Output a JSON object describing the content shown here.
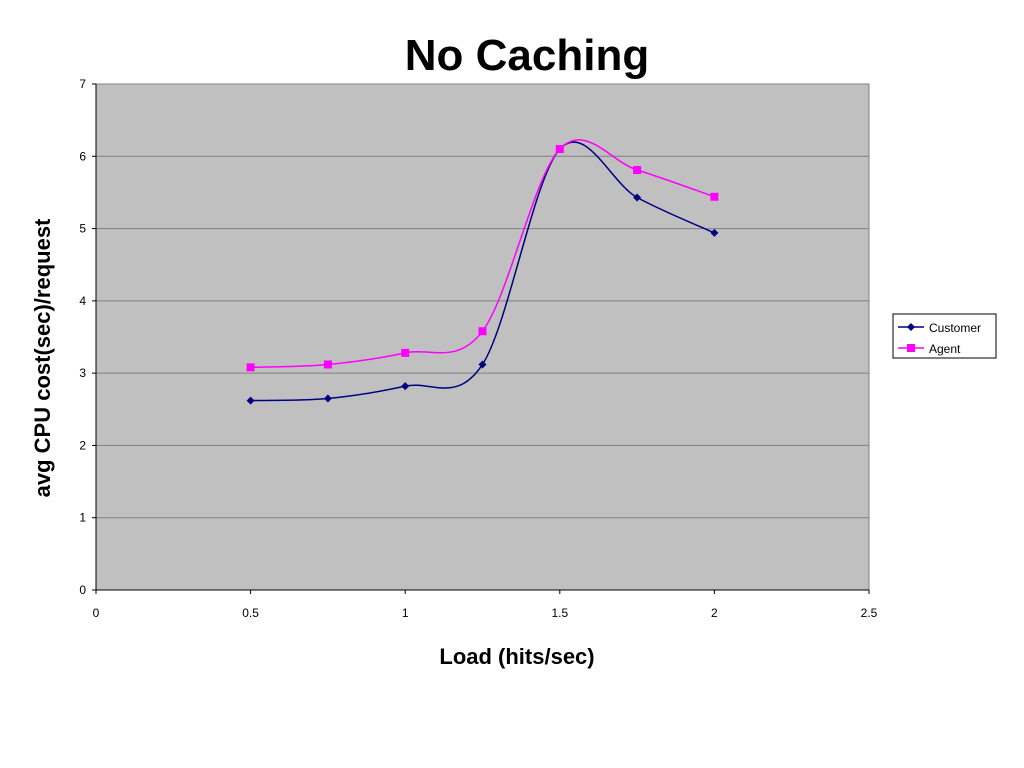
{
  "chart_data": {
    "type": "line",
    "title": "No Caching",
    "xlabel": "Load (hits/sec)",
    "ylabel": "avg CPU cost(sec)/request",
    "xlim": [
      0,
      2.5
    ],
    "ylim": [
      0,
      7
    ],
    "xticks": [
      "0",
      "0.5",
      "1",
      "1.5",
      "2",
      "2.5"
    ],
    "yticks": [
      "0",
      "1",
      "2",
      "3",
      "4",
      "5",
      "6",
      "7"
    ],
    "grid": "horizontal",
    "legend": "right",
    "plot_background": "#c0c0c0",
    "series": [
      {
        "name": "Customer",
        "color": "#000080",
        "marker": "diamond",
        "x": [
          0.5,
          0.75,
          1.0,
          1.25,
          1.5,
          1.75,
          2.0
        ],
        "y": [
          2.62,
          2.65,
          2.82,
          3.12,
          6.1,
          5.43,
          4.94
        ]
      },
      {
        "name": "Agent",
        "color": "#ff00ff",
        "marker": "square",
        "x": [
          0.5,
          0.75,
          1.0,
          1.25,
          1.5,
          1.75,
          2.0
        ],
        "y": [
          3.08,
          3.12,
          3.28,
          3.58,
          6.1,
          5.81,
          5.44
        ]
      }
    ]
  }
}
